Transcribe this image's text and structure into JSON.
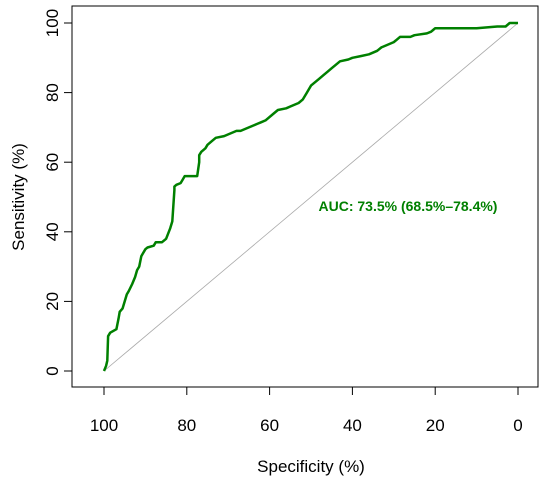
{
  "chart_data": {
    "type": "line",
    "xlabel": "Specificity (%)",
    "ylabel": "Sensitivity (%)",
    "xlim": [
      100,
      0
    ],
    "ylim": [
      0,
      100
    ],
    "x_ticks": [
      "100",
      "80",
      "60",
      "40",
      "20",
      "0"
    ],
    "y_ticks": [
      "0",
      "20",
      "40",
      "60",
      "80",
      "100"
    ],
    "grid": false,
    "annotation": "AUC: 73.5% (68.5%–78.4%)",
    "colors": {
      "roc": "#008000",
      "reference": "#aaaaaa",
      "annotation": "#008000"
    },
    "reference_line": {
      "x": [
        100,
        0
      ],
      "y": [
        0,
        100
      ]
    },
    "series": [
      {
        "x": [
          100,
          99.5,
          99.2,
          99,
          98.5,
          97,
          96.5,
          96.2,
          95.5,
          95,
          94.5,
          94,
          93.2,
          92.5,
          92,
          91.5,
          91,
          90.5,
          90,
          89.5,
          88,
          87.5,
          86,
          85,
          84,
          83.5,
          83,
          83,
          82.5,
          81.5,
          81,
          80.5,
          79,
          77.5,
          77,
          77,
          76.5,
          75.5,
          75,
          74,
          73,
          71,
          70,
          68,
          67,
          65,
          63,
          62,
          61,
          59,
          58,
          56,
          55,
          53,
          52,
          51,
          50,
          48,
          47,
          46,
          45,
          44,
          43,
          41,
          40,
          38,
          36,
          34,
          33,
          31,
          30,
          29.5,
          28.5,
          26,
          25,
          22,
          21,
          20.5,
          20,
          15,
          10,
          5,
          3,
          2,
          1,
          0
        ],
        "y": [
          0,
          1.5,
          3,
          10,
          11,
          12,
          15,
          17,
          18,
          20,
          22,
          23,
          25,
          27,
          29,
          30,
          33,
          34,
          35,
          35.5,
          36,
          37,
          37,
          38,
          41,
          43,
          52,
          53,
          53.5,
          54,
          55,
          56,
          56,
          56,
          60,
          62,
          63,
          64,
          65,
          66,
          67,
          67.5,
          68,
          69,
          69,
          70,
          71,
          71.5,
          72,
          74,
          75,
          75.5,
          76,
          77,
          78,
          80,
          82,
          84,
          85,
          86,
          87,
          88,
          89,
          89.5,
          90,
          90.5,
          91,
          92,
          93,
          94,
          94.5,
          95,
          96,
          96,
          96.5,
          97,
          97.5,
          98,
          98.5,
          98.5,
          98.5,
          99,
          99,
          100,
          100,
          100
        ]
      }
    ]
  }
}
